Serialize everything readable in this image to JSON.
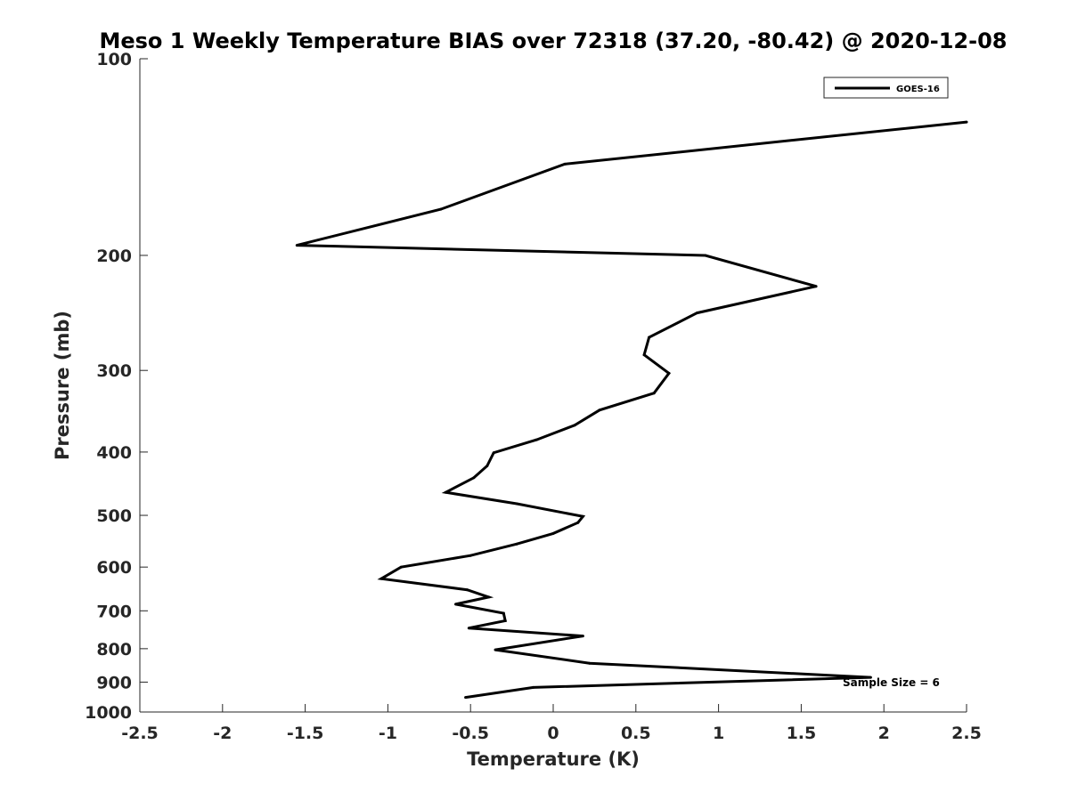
{
  "chart_data": {
    "type": "line",
    "title": "Meso 1 Weekly Temperature BIAS over 72318 (37.20, -80.42) @ 2020-12-08",
    "xlabel": "Temperature (K)",
    "ylabel": "Pressure (mb)",
    "xlim": [
      -2.5,
      2.5
    ],
    "ylim": [
      100,
      1000
    ],
    "y_scale": "log",
    "y_reversed": true,
    "grid": false,
    "legend_position": "top-right",
    "x_ticks": [
      {
        "value": -2.5,
        "label": "-2.5"
      },
      {
        "value": -2,
        "label": "-2"
      },
      {
        "value": -1.5,
        "label": "-1.5"
      },
      {
        "value": -1,
        "label": "-1"
      },
      {
        "value": -0.5,
        "label": "-0.5"
      },
      {
        "value": 0,
        "label": "0"
      },
      {
        "value": 0.5,
        "label": "0.5"
      },
      {
        "value": 1,
        "label": "1"
      },
      {
        "value": 1.5,
        "label": "1.5"
      },
      {
        "value": 2,
        "label": "2"
      },
      {
        "value": 2.5,
        "label": "2.5"
      }
    ],
    "y_ticks": [
      {
        "value": 100,
        "label": "100"
      },
      {
        "value": 200,
        "label": "200"
      },
      {
        "value": 300,
        "label": "300"
      },
      {
        "value": 400,
        "label": "400"
      },
      {
        "value": 500,
        "label": "500"
      },
      {
        "value": 600,
        "label": "600"
      },
      {
        "value": 700,
        "label": "700"
      },
      {
        "value": 800,
        "label": "800"
      },
      {
        "value": 900,
        "label": "900"
      },
      {
        "value": 1000,
        "label": "1000"
      }
    ],
    "series": [
      {
        "name": "GOES-16",
        "color": "#000000",
        "points": [
          {
            "x": 2.5,
            "y": 125
          },
          {
            "x": 0.07,
            "y": 145
          },
          {
            "x": -0.68,
            "y": 170
          },
          {
            "x": -1.55,
            "y": 193
          },
          {
            "x": 0.92,
            "y": 200
          },
          {
            "x": 1.59,
            "y": 223
          },
          {
            "x": 0.87,
            "y": 245
          },
          {
            "x": 0.58,
            "y": 267
          },
          {
            "x": 0.55,
            "y": 284
          },
          {
            "x": 0.7,
            "y": 303
          },
          {
            "x": 0.61,
            "y": 325
          },
          {
            "x": 0.28,
            "y": 345
          },
          {
            "x": 0.13,
            "y": 364
          },
          {
            "x": -0.1,
            "y": 383
          },
          {
            "x": -0.36,
            "y": 401
          },
          {
            "x": -0.4,
            "y": 420
          },
          {
            "x": -0.48,
            "y": 438
          },
          {
            "x": -0.65,
            "y": 461
          },
          {
            "x": -0.22,
            "y": 480
          },
          {
            "x": 0.18,
            "y": 502
          },
          {
            "x": 0.15,
            "y": 513
          },
          {
            "x": 0.0,
            "y": 533
          },
          {
            "x": -0.22,
            "y": 553
          },
          {
            "x": -0.5,
            "y": 576
          },
          {
            "x": -0.92,
            "y": 600
          },
          {
            "x": -1.04,
            "y": 625
          },
          {
            "x": -0.52,
            "y": 650
          },
          {
            "x": -0.39,
            "y": 667
          },
          {
            "x": -0.59,
            "y": 684
          },
          {
            "x": -0.3,
            "y": 706
          },
          {
            "x": -0.29,
            "y": 725
          },
          {
            "x": -0.51,
            "y": 744
          },
          {
            "x": 0.18,
            "y": 765
          },
          {
            "x": -0.35,
            "y": 803
          },
          {
            "x": 0.22,
            "y": 842
          },
          {
            "x": 1.92,
            "y": 885
          },
          {
            "x": -0.12,
            "y": 917
          },
          {
            "x": -0.53,
            "y": 950
          }
        ]
      }
    ],
    "annotations": [
      {
        "text": "Sample Size = 6"
      }
    ]
  }
}
